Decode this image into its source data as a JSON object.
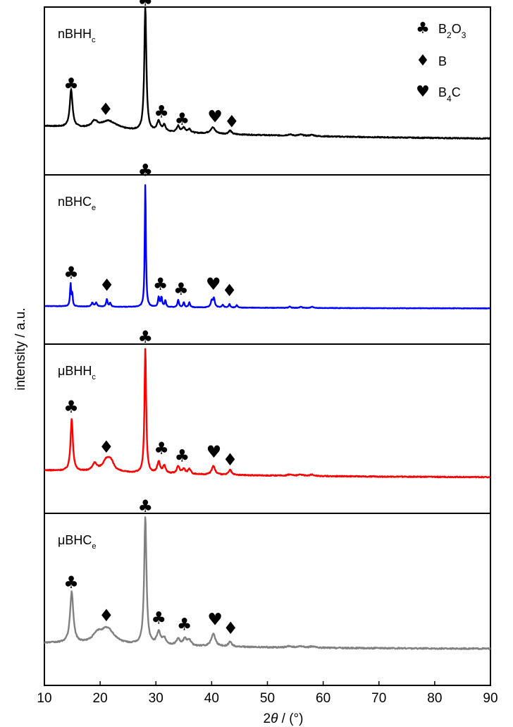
{
  "chart_data": {
    "type": "line",
    "xlabel_prefix": "2",
    "xlabel_theta": "θ",
    "xlabel_suffix": " / (°)",
    "ylabel": "intensity / a.u.",
    "xlim": [
      10,
      90
    ],
    "xticks": [
      10,
      20,
      30,
      40,
      50,
      60,
      70,
      80,
      90
    ],
    "legend_position": "top-right",
    "legend": [
      {
        "symbol": "♣",
        "label": "B",
        "sub": "2",
        "label2": "O",
        "sub2": "3"
      },
      {
        "symbol": "♦",
        "label": "B",
        "sub": "",
        "label2": "",
        "sub2": ""
      },
      {
        "symbol": "♥",
        "label": "B",
        "sub": "4",
        "label2": "C",
        "sub2": ""
      }
    ],
    "series": [
      {
        "name": "nBHHc",
        "label_main": "nBHH",
        "label_sub": "c",
        "color": "#000000",
        "baseline_start": 0.1,
        "baseline_end": 0.01,
        "noise": 0.004,
        "peaks": [
          [
            14.8,
            0.3,
            0.3
          ],
          [
            19.0,
            0.05,
            0.6
          ],
          [
            21.5,
            0.07,
            1.8
          ],
          [
            28.1,
            1.0,
            0.22
          ],
          [
            30.5,
            0.08,
            0.35
          ],
          [
            31.5,
            0.05,
            0.3
          ],
          [
            34.0,
            0.05,
            0.3
          ],
          [
            35.0,
            0.04,
            0.3
          ],
          [
            36.0,
            0.03,
            0.3
          ],
          [
            40.2,
            0.05,
            0.5
          ],
          [
            43.3,
            0.03,
            0.3
          ],
          [
            54,
            0.01,
            0.5
          ],
          [
            56,
            0.01,
            0.5
          ],
          [
            58,
            0.01,
            0.5
          ]
        ],
        "markers": [
          {
            "sym": "♣",
            "x": 14.8,
            "h": 0.4
          },
          {
            "sym": "♦",
            "x": 21.0,
            "h": 0.2
          },
          {
            "sym": "♣",
            "x": 28.1,
            "h": 1.08
          },
          {
            "sym": "♣",
            "x": 31.0,
            "h": 0.18
          },
          {
            "sym": "♣",
            "x": 34.7,
            "h": 0.12
          },
          {
            "sym": "♥",
            "x": 40.6,
            "h": 0.14
          },
          {
            "sym": "♦",
            "x": 43.6,
            "h": 0.1
          }
        ]
      },
      {
        "name": "nBHCe",
        "label_main": "nBHC",
        "label_sub": "e",
        "color": "#0000ff",
        "baseline_start": 0.02,
        "baseline_end": 0.0,
        "noise": 0.002,
        "peaks": [
          [
            14.7,
            0.18,
            0.12
          ],
          [
            15.0,
            0.1,
            0.1
          ],
          [
            18.6,
            0.03,
            0.2
          ],
          [
            19.3,
            0.03,
            0.2
          ],
          [
            21.2,
            0.06,
            0.15
          ],
          [
            21.8,
            0.03,
            0.15
          ],
          [
            28.1,
            1.0,
            0.12
          ],
          [
            30.5,
            0.08,
            0.15
          ],
          [
            31.0,
            0.08,
            0.15
          ],
          [
            31.7,
            0.05,
            0.15
          ],
          [
            34.0,
            0.06,
            0.15
          ],
          [
            35.0,
            0.04,
            0.15
          ],
          [
            36.0,
            0.04,
            0.15
          ],
          [
            40.0,
            0.05,
            0.2
          ],
          [
            40.4,
            0.07,
            0.2
          ],
          [
            42.0,
            0.02,
            0.2
          ],
          [
            43.2,
            0.03,
            0.15
          ],
          [
            44.5,
            0.02,
            0.15
          ],
          [
            54.0,
            0.01,
            0.2
          ],
          [
            56.0,
            0.01,
            0.2
          ],
          [
            58.0,
            0.01,
            0.2
          ]
        ],
        "markers": [
          {
            "sym": "♣",
            "x": 14.8,
            "h": 0.24
          },
          {
            "sym": "♦",
            "x": 21.2,
            "h": 0.14
          },
          {
            "sym": "♣",
            "x": 28.1,
            "h": 1.06
          },
          {
            "sym": "♣",
            "x": 30.8,
            "h": 0.15
          },
          {
            "sym": "♣",
            "x": 34.5,
            "h": 0.11
          },
          {
            "sym": "♥",
            "x": 40.3,
            "h": 0.15
          },
          {
            "sym": "♦",
            "x": 43.2,
            "h": 0.1
          }
        ]
      },
      {
        "name": "μBHHc",
        "label_main": "μBHH",
        "label_sub": "c",
        "color": "#ff0000",
        "baseline_start": 0.06,
        "baseline_end": 0.0,
        "noise": 0.004,
        "peaks": [
          [
            14.9,
            0.42,
            0.25
          ],
          [
            19.0,
            0.06,
            0.5
          ],
          [
            21.2,
            0.1,
            0.9
          ],
          [
            22.0,
            0.05,
            0.6
          ],
          [
            28.1,
            1.0,
            0.18
          ],
          [
            30.5,
            0.09,
            0.3
          ],
          [
            31.5,
            0.06,
            0.3
          ],
          [
            34.0,
            0.06,
            0.3
          ],
          [
            35.0,
            0.04,
            0.3
          ],
          [
            36.0,
            0.04,
            0.3
          ],
          [
            40.3,
            0.07,
            0.35
          ],
          [
            43.3,
            0.04,
            0.3
          ],
          [
            54,
            0.01,
            0.5
          ],
          [
            56,
            0.01,
            0.5
          ],
          [
            58,
            0.01,
            0.5
          ]
        ],
        "markers": [
          {
            "sym": "♣",
            "x": 14.8,
            "h": 0.52
          },
          {
            "sym": "♦",
            "x": 21.1,
            "h": 0.2
          },
          {
            "sym": "♣",
            "x": 28.1,
            "h": 1.08
          },
          {
            "sym": "♣",
            "x": 31.0,
            "h": 0.19
          },
          {
            "sym": "♣",
            "x": 34.7,
            "h": 0.13
          },
          {
            "sym": "♥",
            "x": 40.4,
            "h": 0.16
          },
          {
            "sym": "♦",
            "x": 43.3,
            "h": 0.1
          }
        ]
      },
      {
        "name": "μBHCe",
        "label_main": "μBHC",
        "label_sub": "e",
        "color": "#808080",
        "baseline_start": 0.05,
        "baseline_end": 0.0,
        "noise": 0.005,
        "peaks": [
          [
            14.9,
            0.4,
            0.35
          ],
          [
            19.5,
            0.06,
            1.0
          ],
          [
            21.3,
            0.12,
            1.5
          ],
          [
            28.1,
            1.0,
            0.25
          ],
          [
            30.5,
            0.1,
            0.4
          ],
          [
            31.5,
            0.05,
            0.4
          ],
          [
            34.0,
            0.05,
            0.4
          ],
          [
            35.2,
            0.05,
            0.4
          ],
          [
            36.0,
            0.04,
            0.4
          ],
          [
            40.3,
            0.1,
            0.45
          ],
          [
            43.3,
            0.04,
            0.35
          ],
          [
            54,
            0.01,
            0.5
          ],
          [
            56,
            0.01,
            0.5
          ],
          [
            58,
            0.01,
            0.5
          ]
        ],
        "markers": [
          {
            "sym": "♣",
            "x": 14.8,
            "h": 0.48
          },
          {
            "sym": "♦",
            "x": 21.1,
            "h": 0.22
          },
          {
            "sym": "♣",
            "x": 28.1,
            "h": 1.08
          },
          {
            "sym": "♣",
            "x": 30.5,
            "h": 0.2
          },
          {
            "sym": "♣",
            "x": 35.1,
            "h": 0.15
          },
          {
            "sym": "♥",
            "x": 40.6,
            "h": 0.19
          },
          {
            "sym": "♦",
            "x": 43.4,
            "h": 0.12
          }
        ]
      }
    ]
  }
}
